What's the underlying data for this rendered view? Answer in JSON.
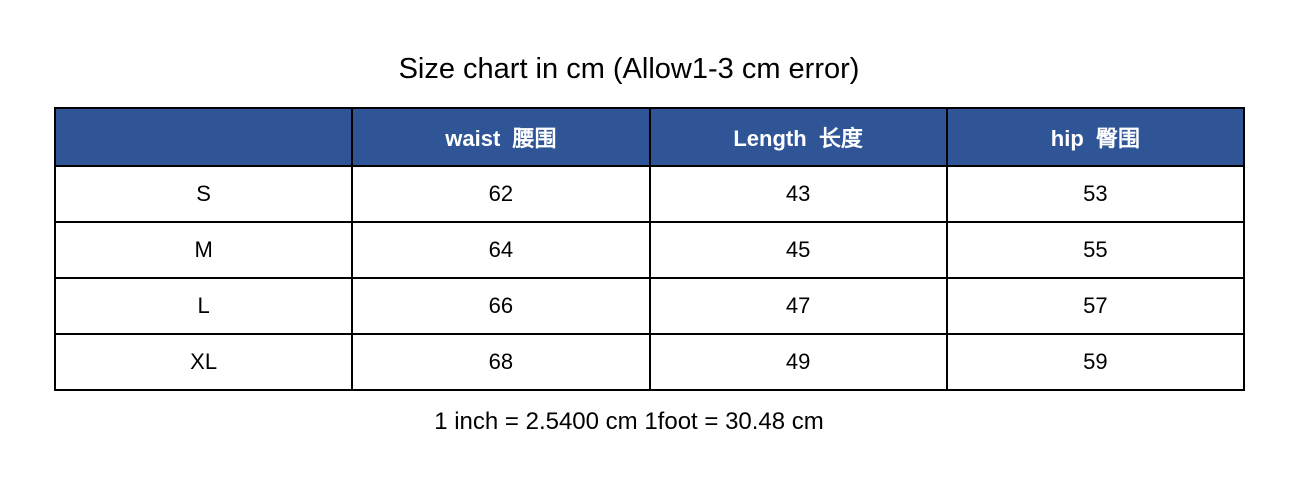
{
  "page": {
    "title": "Size chart in cm (Allow1-3 cm error)",
    "footnote": "1 inch = 2.5400 cm 1foot = 30.48 cm"
  },
  "colors": {
    "header_background": "#2F5597",
    "header_text": "#FFFFFF",
    "table_border": "#000000",
    "body_text": "#000000",
    "page_background": "#FFFFFF"
  },
  "chart_data": {
    "type": "table",
    "title": "Size chart in cm (Allow1-3 cm error)",
    "columns": [
      "",
      "waist  腰围",
      "Length  长度",
      "hip  臀围"
    ],
    "row_labels": [
      "S",
      "M",
      "L",
      "XL"
    ],
    "rows": [
      [
        "S",
        "62",
        "43",
        "53"
      ],
      [
        "M",
        "64",
        "45",
        "55"
      ],
      [
        "L",
        "66",
        "47",
        "57"
      ],
      [
        "XL",
        "68",
        "49",
        "59"
      ]
    ],
    "units": "cm",
    "note": "1 inch = 2.5400 cm 1foot = 30.48 cm"
  }
}
